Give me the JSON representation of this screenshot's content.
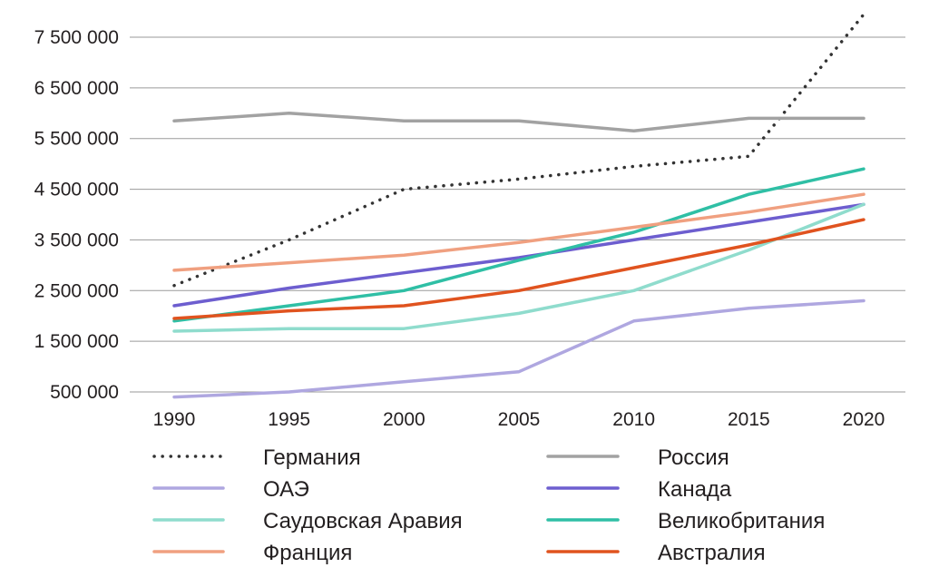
{
  "chart_data": {
    "type": "line",
    "x": [
      "1990",
      "1995",
      "2000",
      "2005",
      "2010",
      "2015",
      "2020"
    ],
    "ylim": [
      500000,
      7500000
    ],
    "yticks": [
      500000,
      1500000,
      2500000,
      3500000,
      4500000,
      5500000,
      6500000,
      7500000
    ],
    "ytick_labels": [
      "500 000",
      "1 500 000",
      "2 500 000",
      "3 500 000",
      "4 500 000",
      "5 500 000",
      "6 500 000",
      "7 500 000"
    ],
    "grid": true,
    "legend_position": "bottom",
    "series": [
      {
        "name": "Германия",
        "color": "#333333",
        "style": "dotted",
        "values": [
          2600000,
          3500000,
          4500000,
          4700000,
          4950000,
          5150000,
          7950000
        ]
      },
      {
        "name": "Россия",
        "color": "#a2a2a2",
        "style": "solid",
        "values": [
          5850000,
          6000000,
          5850000,
          5850000,
          5650000,
          5900000,
          5900000
        ]
      },
      {
        "name": "ОАЭ",
        "color": "#afa7e0",
        "style": "solid",
        "values": [
          400000,
          500000,
          700000,
          900000,
          1900000,
          2150000,
          2300000
        ]
      },
      {
        "name": "Канада",
        "color": "#6d5ecf",
        "style": "solid",
        "values": [
          2200000,
          2550000,
          2850000,
          3150000,
          3500000,
          3850000,
          4200000
        ]
      },
      {
        "name": "Саудовская Аравия",
        "color": "#8fdccd",
        "style": "solid",
        "values": [
          1700000,
          1750000,
          1750000,
          2050000,
          2500000,
          3300000,
          4200000
        ]
      },
      {
        "name": "Великобритания",
        "color": "#2fbfa5",
        "style": "solid",
        "values": [
          1900000,
          2200000,
          2500000,
          3100000,
          3650000,
          4400000,
          4900000
        ]
      },
      {
        "name": "Франция",
        "color": "#f0a080",
        "style": "solid",
        "values": [
          2900000,
          3050000,
          3200000,
          3450000,
          3750000,
          4050000,
          4400000
        ]
      },
      {
        "name": "Австралия",
        "color": "#e0531f",
        "style": "solid",
        "values": [
          1950000,
          2100000,
          2200000,
          2500000,
          2950000,
          3400000,
          3900000
        ]
      }
    ]
  }
}
